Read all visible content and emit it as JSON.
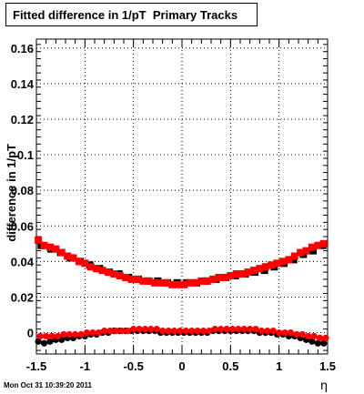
{
  "chart_data": {
    "type": "scatter",
    "title": "Fitted difference in 1/pT  Primary Tracks",
    "xlabel": "η",
    "ylabel": "difference in 1/pT",
    "xlim": [
      -1.5,
      1.5
    ],
    "ylim": [
      -0.012,
      0.165
    ],
    "xticks": [
      -1.5,
      -1,
      -0.5,
      0,
      0.5,
      1,
      1.5
    ],
    "xtick_labels": [
      "-1.5",
      "-1",
      "-0.5",
      "0",
      "0.5",
      "1",
      "1.5"
    ],
    "yticks": [
      0,
      0.02,
      0.04,
      0.06,
      0.08,
      0.1,
      0.12,
      0.14,
      0.16
    ],
    "ytick_labels": [
      "0",
      "0.02",
      "0.04",
      "0.06",
      "0.08",
      "0.1",
      "0.12",
      "0.14",
      "0.16"
    ],
    "grid": true,
    "series": [
      {
        "color": "#000000",
        "marker": "square",
        "x": [
          -1.45,
          -1.35,
          -1.25,
          -1.15,
          -1.05,
          -0.95,
          -0.85,
          -0.75,
          -0.65,
          -0.55,
          -0.45,
          -0.35,
          -0.25,
          -0.15,
          -0.05,
          0.05,
          0.15,
          0.25,
          0.35,
          0.45,
          0.55,
          0.65,
          0.75,
          0.85,
          0.95,
          1.05,
          1.15,
          1.25,
          1.35,
          1.45
        ],
        "y": [
          0.049,
          0.047,
          0.045,
          0.042,
          0.04,
          0.038,
          0.036,
          0.034,
          0.033,
          0.031,
          0.03,
          0.029,
          0.029,
          0.028,
          0.028,
          0.028,
          0.028,
          0.029,
          0.03,
          0.031,
          0.032,
          0.033,
          0.034,
          0.035,
          0.037,
          0.039,
          0.041,
          0.044,
          0.046,
          0.049
        ]
      },
      {
        "color": "#ff0000",
        "marker": "square",
        "x": [
          -1.48,
          -1.42,
          -1.36,
          -1.3,
          -1.24,
          -1.18,
          -1.12,
          -1.06,
          -1.0,
          -0.94,
          -0.88,
          -0.82,
          -0.76,
          -0.7,
          -0.64,
          -0.58,
          -0.52,
          -0.46,
          -0.4,
          -0.34,
          -0.28,
          -0.22,
          -0.16,
          -0.1,
          -0.04,
          0.02,
          0.08,
          0.14,
          0.2,
          0.26,
          0.32,
          0.38,
          0.44,
          0.5,
          0.56,
          0.62,
          0.68,
          0.74,
          0.8,
          0.86,
          0.92,
          0.98,
          1.04,
          1.1,
          1.16,
          1.22,
          1.28,
          1.34,
          1.4,
          1.46
        ],
        "y": [
          0.052,
          0.049,
          0.048,
          0.047,
          0.045,
          0.043,
          0.042,
          0.04,
          0.039,
          0.037,
          0.036,
          0.035,
          0.034,
          0.033,
          0.032,
          0.031,
          0.03,
          0.03,
          0.029,
          0.029,
          0.028,
          0.028,
          0.028,
          0.027,
          0.027,
          0.027,
          0.028,
          0.028,
          0.029,
          0.029,
          0.03,
          0.031,
          0.031,
          0.032,
          0.033,
          0.033,
          0.034,
          0.035,
          0.036,
          0.037,
          0.038,
          0.039,
          0.04,
          0.041,
          0.043,
          0.045,
          0.046,
          0.048,
          0.049,
          0.05
        ]
      },
      {
        "color": "#000000",
        "marker": "circle",
        "x": [
          -1.48,
          -1.42,
          -1.36,
          -1.3,
          -1.24,
          -1.18,
          -1.12,
          -1.06,
          -1.0,
          -0.94,
          -0.88,
          -0.82,
          -0.76,
          -0.7,
          -0.64,
          -0.58,
          -0.52,
          -0.46,
          -0.4,
          -0.34,
          -0.28,
          -0.22,
          -0.16,
          -0.1,
          -0.04,
          0.02,
          0.08,
          0.14,
          0.2,
          0.26,
          0.32,
          0.38,
          0.44,
          0.5,
          0.56,
          0.62,
          0.68,
          0.74,
          0.8,
          0.86,
          0.92,
          0.98,
          1.04,
          1.1,
          1.16,
          1.22,
          1.28,
          1.34,
          1.4,
          1.46
        ],
        "y": [
          -0.005,
          -0.006,
          -0.005,
          -0.004,
          -0.004,
          -0.003,
          -0.003,
          -0.002,
          -0.002,
          -0.001,
          -0.001,
          0.0,
          0.0,
          0.001,
          0.001,
          0.001,
          0.001,
          0.001,
          0.001,
          0.001,
          0.001,
          0.0,
          0.0,
          0.0,
          0.0,
          0.0,
          0.0,
          0.0,
          0.0,
          0.0,
          0.001,
          0.001,
          0.001,
          0.001,
          0.001,
          0.001,
          0.001,
          0.001,
          0.0,
          0.0,
          0.0,
          -0.001,
          -0.001,
          -0.002,
          -0.002,
          -0.003,
          -0.004,
          -0.005,
          -0.006,
          -0.006
        ]
      },
      {
        "color": "#ff0000",
        "marker": "circle",
        "x": [
          -1.46,
          -1.4,
          -1.34,
          -1.28,
          -1.22,
          -1.16,
          -1.1,
          -1.04,
          -0.98,
          -0.92,
          -0.86,
          -0.8,
          -0.74,
          -0.68,
          -0.62,
          -0.56,
          -0.5,
          -0.44,
          -0.38,
          -0.32,
          -0.26,
          -0.2,
          -0.14,
          -0.08,
          -0.02,
          0.04,
          0.1,
          0.16,
          0.22,
          0.28,
          0.34,
          0.4,
          0.46,
          0.52,
          0.58,
          0.64,
          0.7,
          0.76,
          0.82,
          0.88,
          0.94,
          1.0,
          1.06,
          1.12,
          1.18,
          1.24,
          1.3,
          1.36,
          1.42,
          1.48
        ],
        "y": [
          -0.002,
          -0.002,
          -0.002,
          -0.002,
          -0.001,
          -0.001,
          -0.001,
          -0.001,
          0.0,
          0.0,
          0.0,
          0.001,
          0.001,
          0.001,
          0.001,
          0.001,
          0.002,
          0.002,
          0.002,
          0.002,
          0.002,
          0.001,
          0.001,
          0.001,
          0.001,
          0.001,
          0.001,
          0.001,
          0.001,
          0.001,
          0.002,
          0.002,
          0.002,
          0.002,
          0.002,
          0.002,
          0.002,
          0.002,
          0.001,
          0.001,
          0.001,
          0.0,
          0.0,
          0.0,
          -0.001,
          -0.001,
          -0.002,
          -0.002,
          -0.003,
          -0.003
        ]
      }
    ]
  },
  "footer": {
    "timestamp": "Mon Oct 31 10:39:20 2011"
  }
}
